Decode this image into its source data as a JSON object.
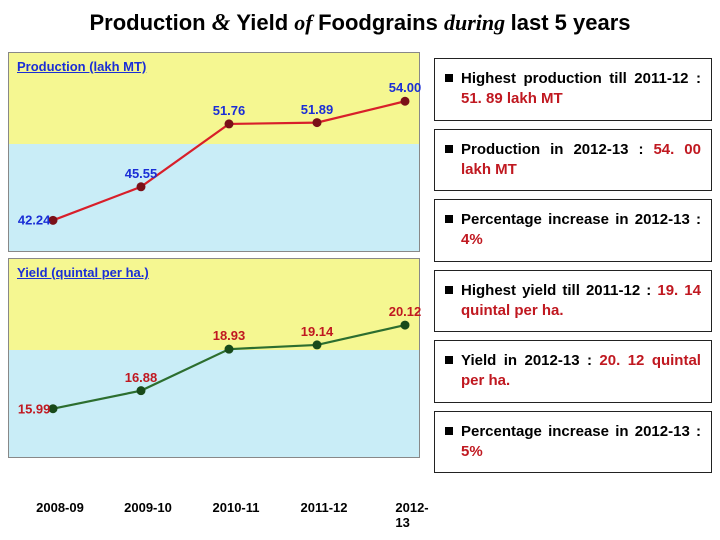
{
  "title": {
    "parts": [
      {
        "text": "Production ",
        "font": "Arial Black, Arial",
        "size": 22,
        "italic": false,
        "color": "#000"
      },
      {
        "text": "& ",
        "font": "Georgia, 'Times New Roman', serif",
        "size": 24,
        "italic": true,
        "color": "#000"
      },
      {
        "text": "Yield ",
        "font": "Arial Black, Arial",
        "size": 22,
        "italic": false,
        "color": "#000"
      },
      {
        "text": "of ",
        "font": "Georgia, 'Times New Roman', serif",
        "size": 22,
        "italic": true,
        "color": "#000"
      },
      {
        "text": "Foodgrains ",
        "font": "Arial Black, Arial",
        "size": 22,
        "italic": false,
        "color": "#000"
      },
      {
        "text": "during ",
        "font": "Georgia, 'Times New Roman', serif",
        "size": 22,
        "italic": true,
        "color": "#000"
      },
      {
        "text": "last 5 years",
        "font": "Arial Black, Arial",
        "size": 22,
        "italic": false,
        "color": "#000"
      }
    ]
  },
  "x_categories": [
    "2008-09",
    "2009-10",
    "2010-11",
    "2011-12",
    "2012-13"
  ],
  "x_label_fontsize": 13,
  "chart_top": {
    "title": "Production (lakh MT)",
    "title_color": "#1a2ed6",
    "title_fontsize": 13,
    "bg_top": "#f5f791",
    "bg_bottom": "#c9edf7",
    "ymin": 40,
    "ymax": 56,
    "y_first_tick": 42.24,
    "values": [
      42.24,
      45.55,
      51.76,
      51.89,
      54.0
    ],
    "value_labels": [
      "42.24",
      "45.55",
      "51.76",
      "51.89",
      "54.00"
    ],
    "line_color": "#d81f2a",
    "marker_color": "#7a1018",
    "marker_radius": 4.5,
    "line_width": 2.2,
    "label_color": "#1a2ed6",
    "label_fontsize": 13
  },
  "chart_bot": {
    "title": "Yield (quintal per ha.)",
    "title_color": "#1a2ed6",
    "title_fontsize": 13,
    "bg_top": "#f5f791",
    "bg_bottom": "#c9edf7",
    "ymin": 14,
    "ymax": 22,
    "y_first_tick": 15.99,
    "values": [
      15.99,
      16.88,
      18.93,
      19.14,
      20.12
    ],
    "value_labels": [
      "15.99",
      "16.88",
      "18.93",
      "19.14",
      "20.12"
    ],
    "line_color": "#2c6e2f",
    "marker_color": "#184a1a",
    "marker_radius": 4.5,
    "line_width": 2.2,
    "label_color": "#c01820",
    "label_fontsize": 13
  },
  "bullets": [
    {
      "pre": "Highest production till 2011-12 : ",
      "hl": "51. 89 lakh MT",
      "hl_color": "#c01820",
      "fs": 15
    },
    {
      "pre": "Production in 2012-13 : ",
      "hl": "54. 00 lakh MT",
      "hl_color": "#c01820",
      "fs": 15
    },
    {
      "pre": "Percentage increase in 2012-13 : ",
      "hl": "4%",
      "hl_color": "#c01820",
      "fs": 15
    },
    {
      "pre": "Highest yield till 2011-12 : ",
      "hl": "19. 14 quintal per ha.",
      "hl_color": "#c01820",
      "fs": 15
    },
    {
      "pre": "Yield in 2012-13 : ",
      "hl": "20. 12 quintal per ha.",
      "hl_color": "#c01820",
      "fs": 15
    },
    {
      "pre": "Percentage increase in 2012-13 : ",
      "hl": "5%",
      "hl_color": "#c01820",
      "fs": 15
    }
  ],
  "bullet_groups": [
    [
      0,
      1,
      2
    ],
    [
      3,
      4,
      5
    ]
  ]
}
